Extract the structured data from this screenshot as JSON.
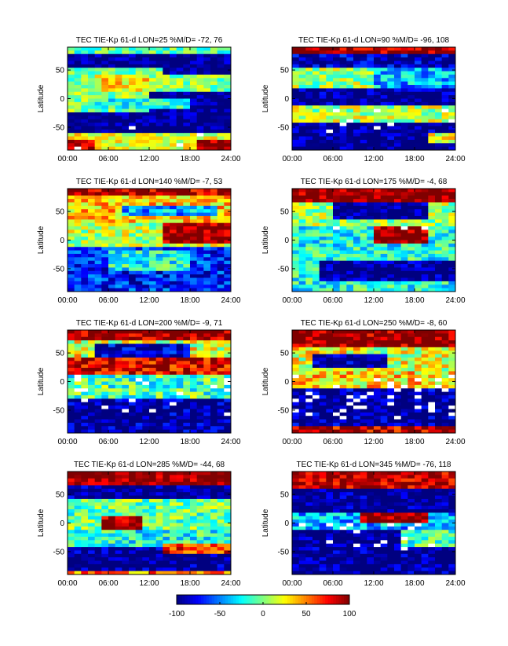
{
  "chart_data": [
    {
      "type": "heatmap",
      "title": "TEC TIE-Kp 61-d LON=25 %M/D=  -72,  76",
      "ylabel": "Latitude",
      "xticks": [
        "00:00",
        "06:00",
        "12:00",
        "18:00",
        "24:00"
      ],
      "yticks": [
        "50",
        "0",
        "-50"
      ],
      "xlim": [
        0,
        24
      ],
      "ylim": [
        -90,
        90
      ],
      "features": [
        {
          "x0": 0,
          "x1": 24,
          "y0": 40,
          "y1": 90,
          "v": -100
        },
        {
          "x0": 0,
          "x1": 24,
          "y0": 80,
          "y1": 90,
          "v": -10
        },
        {
          "x0": 0,
          "x1": 14,
          "y0": 5,
          "y1": 55,
          "v": 0
        },
        {
          "x0": 4,
          "x1": 12,
          "y0": 12,
          "y1": 42,
          "v": 30
        },
        {
          "x0": 12,
          "x1": 24,
          "y0": -25,
          "y1": 10,
          "v": -100
        },
        {
          "x0": 0,
          "x1": 24,
          "y0": -60,
          "y1": -25,
          "v": -100
        },
        {
          "x0": 4,
          "x1": 18,
          "y0": -20,
          "y1": 0,
          "v": -20
        },
        {
          "x0": 0,
          "x1": 24,
          "y0": -90,
          "y1": -60,
          "v": 20
        },
        {
          "x0": 0,
          "x1": 4,
          "y0": -90,
          "y1": -70,
          "v": 90
        },
        {
          "x0": 19,
          "x1": 24,
          "y0": -90,
          "y1": -75,
          "v": 85
        }
      ],
      "noise": 25,
      "white_frac": 0.02,
      "white_lat": [
        -90,
        -45
      ]
    },
    {
      "type": "heatmap",
      "title": "TEC TIE-Kp 61-d LON=90 %M/D=  -96,  108",
      "ylabel": "Latitude",
      "xticks": [
        "00:00",
        "06:00",
        "12:00",
        "18:00",
        "24:00"
      ],
      "yticks": [
        "50",
        "0",
        "-50"
      ],
      "xlim": [
        0,
        24
      ],
      "ylim": [
        -90,
        90
      ],
      "features": [
        {
          "x0": 0,
          "x1": 24,
          "y0": 75,
          "y1": 90,
          "v": 95
        },
        {
          "x0": 0,
          "x1": 24,
          "y0": 55,
          "y1": 75,
          "v": -90
        },
        {
          "x0": 0,
          "x1": 12,
          "y0": 20,
          "y1": 55,
          "v": 5
        },
        {
          "x0": 12,
          "x1": 24,
          "y0": 20,
          "y1": 55,
          "v": -40
        },
        {
          "x0": 0,
          "x1": 24,
          "y0": -15,
          "y1": 20,
          "v": -100
        },
        {
          "x0": 0,
          "x1": 24,
          "y0": -40,
          "y1": -15,
          "v": 10
        },
        {
          "x0": 0,
          "x1": 24,
          "y0": -90,
          "y1": -40,
          "v": -100
        },
        {
          "x0": 20,
          "x1": 24,
          "y0": -80,
          "y1": -60,
          "v": 20
        }
      ],
      "noise": 30,
      "white_frac": 0.04,
      "white_lat": [
        -60,
        -20
      ]
    },
    {
      "type": "heatmap",
      "title": "TEC TIE-Kp 61-d LON=140 %M/D=  -7,  53",
      "ylabel": "Latitude",
      "xticks": [
        "00:00",
        "06:00",
        "12:00",
        "18:00",
        "24:00"
      ],
      "yticks": [
        "50",
        "0",
        "-50"
      ],
      "xlim": [
        0,
        24
      ],
      "ylim": [
        -90,
        90
      ],
      "features": [
        {
          "x0": 0,
          "x1": 24,
          "y0": 75,
          "y1": 90,
          "v": 90
        },
        {
          "x0": 0,
          "x1": 24,
          "y0": 30,
          "y1": 75,
          "v": 35
        },
        {
          "x0": 8,
          "x1": 22,
          "y0": 40,
          "y1": 60,
          "v": -40
        },
        {
          "x0": 0,
          "x1": 24,
          "y0": -10,
          "y1": 30,
          "v": 10
        },
        {
          "x0": 14,
          "x1": 24,
          "y0": -5,
          "y1": 30,
          "v": 100
        },
        {
          "x0": 0,
          "x1": 24,
          "y0": -90,
          "y1": -10,
          "v": -70
        },
        {
          "x0": 6,
          "x1": 18,
          "y0": -55,
          "y1": -20,
          "v": -20
        }
      ],
      "noise": 30,
      "white_frac": 0,
      "white_lat": [
        0,
        0
      ]
    },
    {
      "type": "heatmap",
      "title": "TEC TIE-Kp 61-d LON=175 %M/D=  -4,  68",
      "ylabel": "Latitude",
      "xticks": [
        "00:00",
        "06:00",
        "12:00",
        "18:00",
        "24:00"
      ],
      "yticks": [
        "50",
        "0",
        "-50"
      ],
      "xlim": [
        0,
        24
      ],
      "ylim": [
        -90,
        90
      ],
      "features": [
        {
          "x0": 0,
          "x1": 24,
          "y0": 65,
          "y1": 90,
          "v": 100
        },
        {
          "x0": 0,
          "x1": 24,
          "y0": 25,
          "y1": 65,
          "v": 5
        },
        {
          "x0": 6,
          "x1": 20,
          "y0": 35,
          "y1": 65,
          "v": -100
        },
        {
          "x0": 0,
          "x1": 24,
          "y0": -10,
          "y1": 25,
          "v": -20
        },
        {
          "x0": 12,
          "x1": 20,
          "y0": -5,
          "y1": 25,
          "v": 100
        },
        {
          "x0": 0,
          "x1": 24,
          "y0": -90,
          "y1": -10,
          "v": -20
        },
        {
          "x0": 4,
          "x1": 24,
          "y0": -70,
          "y1": -35,
          "v": -100
        }
      ],
      "noise": 30,
      "white_frac": 0.03,
      "white_lat": [
        10,
        30
      ]
    },
    {
      "type": "heatmap",
      "title": "TEC TIE-Kp 61-d LON=200 %M/D=  -9,  71",
      "ylabel": "Latitude",
      "xticks": [
        "00:00",
        "06:00",
        "12:00",
        "18:00",
        "24:00"
      ],
      "yticks": [
        "50",
        "0",
        "-50"
      ],
      "xlim": [
        0,
        24
      ],
      "ylim": [
        -90,
        90
      ],
      "features": [
        {
          "x0": 0,
          "x1": 24,
          "y0": 70,
          "y1": 90,
          "v": 100
        },
        {
          "x0": 0,
          "x1": 24,
          "y0": 40,
          "y1": 70,
          "v": 20
        },
        {
          "x0": 4,
          "x1": 18,
          "y0": 45,
          "y1": 65,
          "v": -90
        },
        {
          "x0": 0,
          "x1": 24,
          "y0": 10,
          "y1": 40,
          "v": 85
        },
        {
          "x0": 0,
          "x1": 24,
          "y0": -30,
          "y1": 10,
          "v": -10
        },
        {
          "x0": 0,
          "x1": 24,
          "y0": -90,
          "y1": -30,
          "v": -100
        }
      ],
      "noise": 35,
      "white_frac": 0.09,
      "white_lat": [
        -60,
        10
      ]
    },
    {
      "type": "heatmap",
      "title": "TEC TIE-Kp 61-d LON=250 %M/D=  -8,  60",
      "ylabel": "Latitude",
      "xticks": [
        "00:00",
        "06:00",
        "12:00",
        "18:00",
        "24:00"
      ],
      "yticks": [
        "50",
        "0",
        "-50"
      ],
      "xlim": [
        0,
        24
      ],
      "ylim": [
        -90,
        90
      ],
      "features": [
        {
          "x0": 0,
          "x1": 24,
          "y0": 60,
          "y1": 90,
          "v": 100
        },
        {
          "x0": 0,
          "x1": 24,
          "y0": 20,
          "y1": 60,
          "v": 20
        },
        {
          "x0": 3,
          "x1": 14,
          "y0": 25,
          "y1": 50,
          "v": -100
        },
        {
          "x0": 0,
          "x1": 24,
          "y0": -10,
          "y1": 20,
          "v": 30
        },
        {
          "x0": 0,
          "x1": 24,
          "y0": -90,
          "y1": -10,
          "v": -100
        },
        {
          "x0": 0,
          "x1": 24,
          "y0": -90,
          "y1": -80,
          "v": 90
        }
      ],
      "noise": 35,
      "white_frac": 0.1,
      "white_lat": [
        -65,
        10
      ]
    },
    {
      "type": "heatmap",
      "title": "TEC TIE-Kp 61-d LON=285 %M/D=  -44,  68",
      "ylabel": "Latitude",
      "xticks": [
        "00:00",
        "06:00",
        "12:00",
        "18:00",
        "24:00"
      ],
      "yticks": [
        "50",
        "0",
        "-50"
      ],
      "xlim": [
        0,
        24
      ],
      "ylim": [
        -90,
        90
      ],
      "features": [
        {
          "x0": 0,
          "x1": 24,
          "y0": 65,
          "y1": 90,
          "v": 100
        },
        {
          "x0": 0,
          "x1": 24,
          "y0": 40,
          "y1": 65,
          "v": -100
        },
        {
          "x0": 0,
          "x1": 24,
          "y0": -10,
          "y1": 40,
          "v": -5
        },
        {
          "x0": 5,
          "x1": 11,
          "y0": -25,
          "y1": 10,
          "v": 95
        },
        {
          "x0": 0,
          "x1": 24,
          "y0": -40,
          "y1": -10,
          "v": -20
        },
        {
          "x0": 0,
          "x1": 24,
          "y0": -85,
          "y1": -40,
          "v": -100
        },
        {
          "x0": 14,
          "x1": 24,
          "y0": -55,
          "y1": -35,
          "v": 70
        },
        {
          "x0": 0,
          "x1": 24,
          "y0": -90,
          "y1": -85,
          "v": 50
        }
      ],
      "noise": 30,
      "white_frac": 0,
      "white_lat": [
        0,
        0
      ]
    },
    {
      "type": "heatmap",
      "title": "TEC TIE-Kp 61-d LON=345 %M/D=  -76,  118",
      "ylabel": "Latitude",
      "xticks": [
        "00:00",
        "06:00",
        "12:00",
        "18:00",
        "24:00"
      ],
      "yticks": [
        "50",
        "0",
        "-50"
      ],
      "xlim": [
        0,
        24
      ],
      "ylim": [
        -90,
        90
      ],
      "features": [
        {
          "x0": 0,
          "x1": 24,
          "y0": 60,
          "y1": 90,
          "v": 90
        },
        {
          "x0": 0,
          "x1": 24,
          "y0": 20,
          "y1": 60,
          "v": -100
        },
        {
          "x0": 0,
          "x1": 24,
          "y0": -10,
          "y1": 20,
          "v": -40
        },
        {
          "x0": 10,
          "x1": 20,
          "y0": 0,
          "y1": 20,
          "v": 100
        },
        {
          "x0": 0,
          "x1": 24,
          "y0": -90,
          "y1": -10,
          "v": -100
        },
        {
          "x0": 16,
          "x1": 24,
          "y0": -40,
          "y1": -15,
          "v": -10
        }
      ],
      "noise": 30,
      "white_frac": 0.06,
      "white_lat": [
        -45,
        0
      ]
    }
  ],
  "colorbar": {
    "ticks": [
      "-100",
      "-50",
      "0",
      "50",
      "100"
    ],
    "tick_values": [
      -100,
      -50,
      0,
      50,
      100
    ],
    "vmin": -100,
    "vmax": 100,
    "colormap": "jet"
  }
}
